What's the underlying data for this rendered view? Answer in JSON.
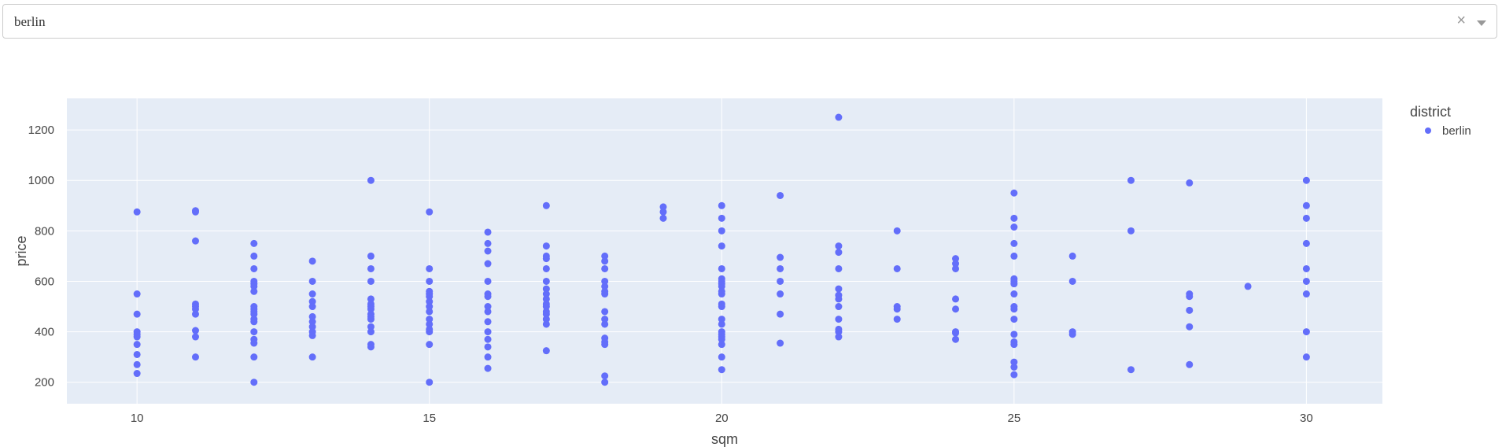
{
  "filter": {
    "selected_value": "berlin",
    "clear_icon": "close-icon",
    "arrow_icon": "chevron-down-icon"
  },
  "colors": {
    "series": "#636efa",
    "plot_bg": "#e5ecf6",
    "grid": "#ffffff",
    "text": "#444444"
  },
  "chart_data": {
    "type": "scatter",
    "xlabel": "sqm",
    "ylabel": "price",
    "xlim": [
      8.8,
      31.3
    ],
    "ylim": [
      115,
      1325
    ],
    "x_ticks": [
      10,
      15,
      20,
      25,
      30
    ],
    "y_ticks": [
      200,
      400,
      600,
      800,
      1000,
      1200
    ],
    "grid": true,
    "legend": {
      "title": "district",
      "placement": "top-right",
      "entries": [
        "berlin"
      ]
    },
    "series": [
      {
        "name": "berlin",
        "points": [
          [
            10,
            875
          ],
          [
            10,
            550
          ],
          [
            10,
            470
          ],
          [
            10,
            400
          ],
          [
            10,
            390
          ],
          [
            10,
            380
          ],
          [
            10,
            350
          ],
          [
            10,
            310
          ],
          [
            10,
            270
          ],
          [
            10,
            235
          ],
          [
            11,
            880
          ],
          [
            11,
            875
          ],
          [
            11,
            760
          ],
          [
            11,
            510
          ],
          [
            11,
            500
          ],
          [
            11,
            490
          ],
          [
            11,
            470
          ],
          [
            11,
            405
          ],
          [
            11,
            380
          ],
          [
            11,
            300
          ],
          [
            12,
            750
          ],
          [
            12,
            700
          ],
          [
            12,
            650
          ],
          [
            12,
            600
          ],
          [
            12,
            590
          ],
          [
            12,
            580
          ],
          [
            12,
            560
          ],
          [
            12,
            500
          ],
          [
            12,
            490
          ],
          [
            12,
            480
          ],
          [
            12,
            470
          ],
          [
            12,
            450
          ],
          [
            12,
            440
          ],
          [
            12,
            400
          ],
          [
            12,
            370
          ],
          [
            12,
            355
          ],
          [
            12,
            300
          ],
          [
            12,
            200
          ],
          [
            13,
            680
          ],
          [
            13,
            600
          ],
          [
            13,
            550
          ],
          [
            13,
            520
          ],
          [
            13,
            500
          ],
          [
            13,
            460
          ],
          [
            13,
            440
          ],
          [
            13,
            420
          ],
          [
            13,
            400
          ],
          [
            13,
            385
          ],
          [
            13,
            300
          ],
          [
            14,
            1000
          ],
          [
            14,
            700
          ],
          [
            14,
            650
          ],
          [
            14,
            600
          ],
          [
            14,
            530
          ],
          [
            14,
            510
          ],
          [
            14,
            500
          ],
          [
            14,
            490
          ],
          [
            14,
            470
          ],
          [
            14,
            460
          ],
          [
            14,
            450
          ],
          [
            14,
            420
          ],
          [
            14,
            400
          ],
          [
            14,
            350
          ],
          [
            14,
            340
          ],
          [
            15,
            875
          ],
          [
            15,
            650
          ],
          [
            15,
            600
          ],
          [
            15,
            560
          ],
          [
            15,
            550
          ],
          [
            15,
            540
          ],
          [
            15,
            520
          ],
          [
            15,
            500
          ],
          [
            15,
            480
          ],
          [
            15,
            450
          ],
          [
            15,
            430
          ],
          [
            15,
            410
          ],
          [
            15,
            400
          ],
          [
            15,
            350
          ],
          [
            15,
            200
          ],
          [
            16,
            795
          ],
          [
            16,
            750
          ],
          [
            16,
            720
          ],
          [
            16,
            670
          ],
          [
            16,
            600
          ],
          [
            16,
            550
          ],
          [
            16,
            540
          ],
          [
            16,
            500
          ],
          [
            16,
            480
          ],
          [
            16,
            440
          ],
          [
            16,
            400
          ],
          [
            16,
            370
          ],
          [
            16,
            340
          ],
          [
            16,
            300
          ],
          [
            16,
            255
          ],
          [
            17,
            900
          ],
          [
            17,
            740
          ],
          [
            17,
            700
          ],
          [
            17,
            690
          ],
          [
            17,
            650
          ],
          [
            17,
            600
          ],
          [
            17,
            570
          ],
          [
            17,
            550
          ],
          [
            17,
            530
          ],
          [
            17,
            510
          ],
          [
            17,
            500
          ],
          [
            17,
            480
          ],
          [
            17,
            470
          ],
          [
            17,
            450
          ],
          [
            17,
            430
          ],
          [
            17,
            325
          ],
          [
            18,
            700
          ],
          [
            18,
            680
          ],
          [
            18,
            650
          ],
          [
            18,
            600
          ],
          [
            18,
            580
          ],
          [
            18,
            560
          ],
          [
            18,
            550
          ],
          [
            18,
            480
          ],
          [
            18,
            450
          ],
          [
            18,
            430
          ],
          [
            18,
            375
          ],
          [
            18,
            360
          ],
          [
            18,
            350
          ],
          [
            18,
            225
          ],
          [
            18,
            200
          ],
          [
            19,
            895
          ],
          [
            19,
            875
          ],
          [
            19,
            850
          ],
          [
            20,
            900
          ],
          [
            20,
            850
          ],
          [
            20,
            800
          ],
          [
            20,
            740
          ],
          [
            20,
            650
          ],
          [
            20,
            610
          ],
          [
            20,
            600
          ],
          [
            20,
            590
          ],
          [
            20,
            580
          ],
          [
            20,
            560
          ],
          [
            20,
            550
          ],
          [
            20,
            510
          ],
          [
            20,
            500
          ],
          [
            20,
            450
          ],
          [
            20,
            430
          ],
          [
            20,
            400
          ],
          [
            20,
            390
          ],
          [
            20,
            380
          ],
          [
            20,
            370
          ],
          [
            20,
            350
          ],
          [
            20,
            300
          ],
          [
            20,
            250
          ],
          [
            21,
            940
          ],
          [
            21,
            695
          ],
          [
            21,
            650
          ],
          [
            21,
            600
          ],
          [
            21,
            550
          ],
          [
            21,
            470
          ],
          [
            21,
            355
          ],
          [
            22,
            1250
          ],
          [
            22,
            740
          ],
          [
            22,
            715
          ],
          [
            22,
            650
          ],
          [
            22,
            570
          ],
          [
            22,
            545
          ],
          [
            22,
            530
          ],
          [
            22,
            500
          ],
          [
            22,
            450
          ],
          [
            22,
            410
          ],
          [
            22,
            400
          ],
          [
            22,
            380
          ],
          [
            23,
            800
          ],
          [
            23,
            650
          ],
          [
            23,
            500
          ],
          [
            23,
            490
          ],
          [
            23,
            450
          ],
          [
            24,
            690
          ],
          [
            24,
            670
          ],
          [
            24,
            650
          ],
          [
            24,
            530
          ],
          [
            24,
            490
          ],
          [
            24,
            400
          ],
          [
            24,
            395
          ],
          [
            24,
            370
          ],
          [
            25,
            950
          ],
          [
            25,
            850
          ],
          [
            25,
            815
          ],
          [
            25,
            750
          ],
          [
            25,
            700
          ],
          [
            25,
            610
          ],
          [
            25,
            600
          ],
          [
            25,
            590
          ],
          [
            25,
            550
          ],
          [
            25,
            500
          ],
          [
            25,
            490
          ],
          [
            25,
            450
          ],
          [
            25,
            390
          ],
          [
            25,
            360
          ],
          [
            25,
            350
          ],
          [
            25,
            280
          ],
          [
            25,
            260
          ],
          [
            25,
            230
          ],
          [
            26,
            700
          ],
          [
            26,
            600
          ],
          [
            26,
            400
          ],
          [
            26,
            390
          ],
          [
            27,
            1000
          ],
          [
            27,
            800
          ],
          [
            27,
            250
          ],
          [
            28,
            990
          ],
          [
            28,
            550
          ],
          [
            28,
            540
          ],
          [
            28,
            485
          ],
          [
            28,
            420
          ],
          [
            28,
            270
          ],
          [
            29,
            580
          ],
          [
            30,
            1000
          ],
          [
            30,
            900
          ],
          [
            30,
            850
          ],
          [
            30,
            750
          ],
          [
            30,
            650
          ],
          [
            30,
            600
          ],
          [
            30,
            550
          ],
          [
            30,
            400
          ],
          [
            30,
            300
          ]
        ]
      }
    ]
  }
}
